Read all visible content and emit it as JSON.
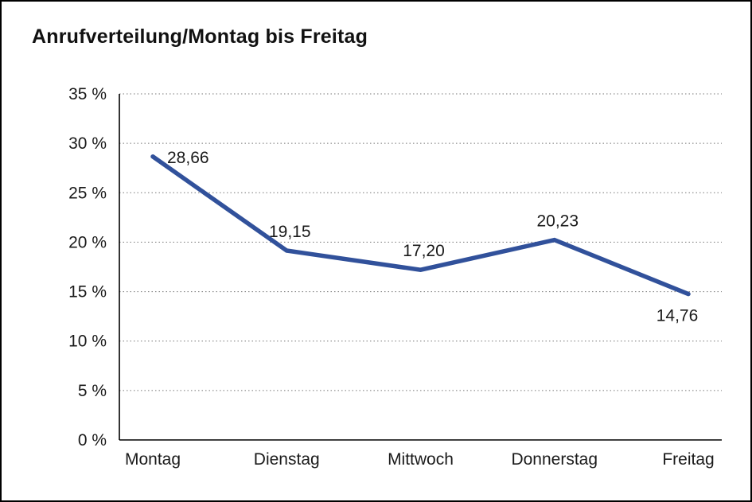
{
  "chart_data": {
    "type": "line",
    "title": "Anrufverteilung/Montag bis Freitag",
    "categories": [
      "Montag",
      "Dienstag",
      "Mittwoch",
      "Donnerstag",
      "Freitag"
    ],
    "values": [
      28.66,
      19.15,
      17.2,
      20.23,
      14.76
    ],
    "point_labels": [
      "28,66",
      "19,15",
      "17,20",
      "20,23",
      "14,76"
    ],
    "label_positions": [
      "right",
      "above",
      "above",
      "above",
      "below"
    ],
    "xlabel": "",
    "ylabel": "",
    "ylim": [
      0,
      35
    ],
    "ytick_step": 5,
    "ytick_labels": [
      "0 %",
      "5 %",
      "10 %",
      "15 %",
      "20 %",
      "25 %",
      "30 %",
      "35 %"
    ],
    "grid": "dotted-horizontal",
    "legend": "none",
    "line_color": "#31519b",
    "grid_color": "#777777",
    "axis_color": "#000000",
    "text_color": "#1a1a1a",
    "background_color": "#ffffff"
  }
}
